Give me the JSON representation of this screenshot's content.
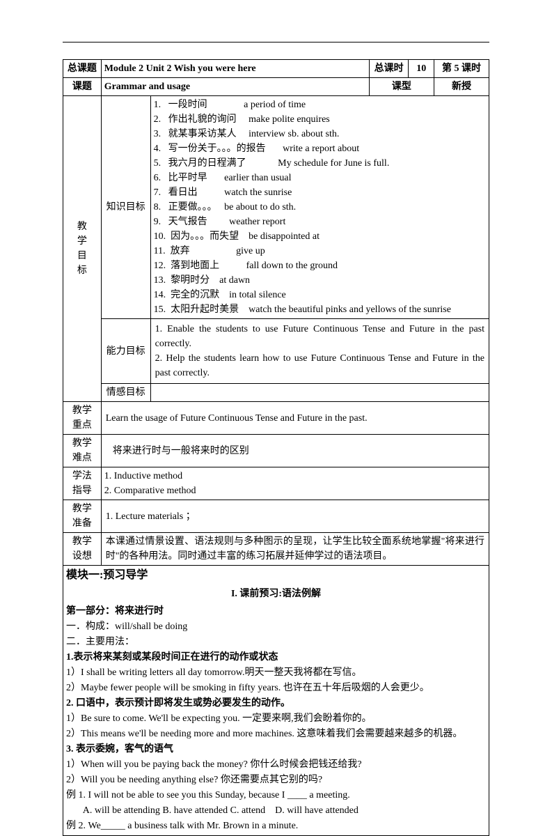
{
  "header": {
    "zongketi_label": "总课题",
    "module_title": "Module 2    Unit 2    Wish you were here",
    "zongkeshi_label": "总课时",
    "zongkeshi_value": "10",
    "di_keshi": "第 5 课时",
    "keti_label": "课题",
    "keti_value": "Grammar and usage",
    "kexing_label": "课型",
    "kexing_value": "新授"
  },
  "goals": {
    "main_label": "教\n学\n目\n标",
    "zhishi_label": "知识目标",
    "vocab": [
      "1.   一段时间               a period of time",
      "2.   作出礼貌的询问     make polite enquires",
      "3.   就某事采访某人     interview sb. about sth.",
      "4.   写一份关于。。。的报告       write a report about",
      "5.   我六月的日程满了             My schedule for June is full.",
      "6.   比平时早       earlier than usual",
      "7.   看日出           watch the sunrise",
      "8.   正要做。。。   be about to do sth.",
      "9.   天气报告         weather report",
      "10.  因为。。。而失望    be disappointed at",
      "11.  放弃                   give up",
      "12.  落到地面上           fall down to the ground",
      "13.  黎明时分    at dawn",
      "14.  完全的沉默    in total silence",
      "15.  太阳升起时美景    watch the beautiful pinks and yellows of the sunrise"
    ],
    "nengli_label": "能力目标",
    "nengli_text": "1. Enable the students to use Future Continuous Tense and Future in the past correctly.\n2. Help the students learn how to use Future Continuous Tense and Future in the past correctly.",
    "qinggan_label": "情感目标"
  },
  "rows": {
    "zhongdian_label": "教学\n重点",
    "zhongdian_text": "Learn the usage of Future Continuous Tense and Future in the past.",
    "nandian_label": "教学\n难点",
    "nandian_text": "将来进行时与一般将来时的区别",
    "xuefa_label": "学法\n指导",
    "xuefa_text": "1. Inductive method\n2. Comparative method",
    "zhunbei_label": "教学\n准备",
    "zhunbei_text": "1.  Lecture materials  ；",
    "shexiang_label": "教学\n设想",
    "shexiang_text": "本课通过情景设置、语法规则与多种图示的呈现，让学生比较全面系统地掌握\"将来进行时\"的各种用法。同时通过丰富的练习拓展并延伸学过的语法项目。"
  },
  "module1": {
    "title": "模块一:预习导学",
    "subtitle": "I. 课前预习:语法例解",
    "part1_label": "第一部分：将来进行时",
    "gc_label": "一．构成：will/shall be doing",
    "usage_label": "二．主要用法：",
    "u1_title": "1.表示将来某刻或某段时间正在进行的动作或状态",
    "u1_1": "1）I shall be writing letters all day tomorrow.明天一整天我将都在写信。",
    "u1_2": "2）Maybe fewer people will be smoking in fifty years.  也许在五十年后吸烟的人会更少。",
    "u2_title": "2.  口语中，表示预计即将发生或势必要发生的动作。",
    "u2_1": "1）Be sure to come. We'll be expecting you.  一定要来啊,我们会盼着你的。",
    "u2_2": "2）This means we'll be needing more and more machines.  这意味着我们会需要越来越多的机器。",
    "u3_title": "3.  表示委婉，客气的语气",
    "u3_1": "1）When will you be paying back the money?  你什么时候会把钱还给我?",
    "u3_2": "2）Will you be needing anything else?  你还需要点其它别的吗?",
    "ex1": "例 1. I will not be able to see you this Sunday, because I ____ a meeting.",
    "ex1_opts": "       A. will be attending B. have attended C. attend    D. will have attended",
    "ex2": "例 2. We_____ a business talk with Mr. Brown in a minute."
  }
}
